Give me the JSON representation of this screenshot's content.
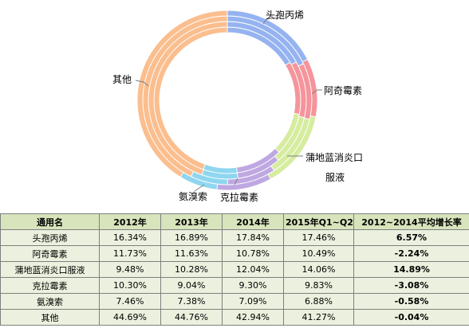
{
  "chart_data": {
    "type": "doughnut",
    "rings": [
      "2012",
      "2013",
      "2014",
      "2015Q1~Q2"
    ],
    "categories": [
      "头孢丙烯",
      "阿奇霉素",
      "蒲地蓝消炎口服液",
      "克拉霉素",
      "氨溴索",
      "其他"
    ],
    "series": [
      {
        "name": "2012",
        "values": [
          16.34,
          11.73,
          9.48,
          10.3,
          7.46,
          44.69
        ]
      },
      {
        "name": "2013",
        "values": [
          16.89,
          11.63,
          10.28,
          9.04,
          7.38,
          44.76
        ]
      },
      {
        "name": "2014",
        "values": [
          17.84,
          10.78,
          12.04,
          9.3,
          7.09,
          42.94
        ]
      },
      {
        "name": "2015Q1~Q2",
        "values": [
          17.46,
          10.49,
          14.06,
          9.83,
          6.88,
          41.27
        ]
      }
    ],
    "colors": [
      "#95b3f0",
      "#f5959b",
      "#d6ec9f",
      "#bfa8e1",
      "#8fd6f0",
      "#fbbe8e"
    ],
    "labels": [
      "头孢丙烯",
      "阿奇霉素",
      "蒲地蓝消炎口",
      "服液",
      "克拉霉素",
      "氨溴索",
      "其他"
    ]
  },
  "table": {
    "headers": [
      "通用名",
      "2012年",
      "2013年",
      "2014年",
      "2015年Q1~Q2",
      "2012~2014平均增长率"
    ],
    "rows": [
      [
        "头孢丙烯",
        "16.34%",
        "16.89%",
        "17.84%",
        "17.46%",
        "6.57%"
      ],
      [
        "阿奇霉素",
        "11.73%",
        "11.63%",
        "10.78%",
        "10.49%",
        "-2.24%"
      ],
      [
        "蒲地蓝消炎口服液",
        "9.48%",
        "10.28%",
        "12.04%",
        "14.06%",
        "14.89%"
      ],
      [
        "克拉霉素",
        "10.30%",
        "9.04%",
        "9.30%",
        "9.83%",
        "-3.08%"
      ],
      [
        "氨溴索",
        "7.46%",
        "7.38%",
        "7.09%",
        "6.88%",
        "-0.58%"
      ],
      [
        "其他",
        "44.69%",
        "44.76%",
        "42.94%",
        "41.27%",
        "-0.04%"
      ]
    ]
  }
}
